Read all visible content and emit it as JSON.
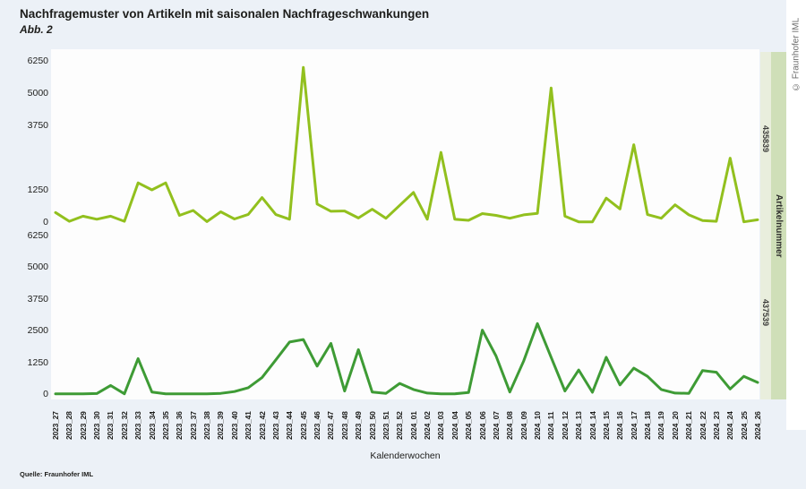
{
  "header": {
    "title": "Nachfragemuster von Artikeln mit saisonalen Nachfrageschwankungen",
    "subtitle": "Abb. 2"
  },
  "copyright_vertical": "© Fraunhofer IML",
  "source": "Quelle: Fraunhofer IML",
  "colors": {
    "page_background": "#ecf1f7",
    "plot_background": "#fdfdfd",
    "strip_values_background": "#e9eedd",
    "strip_axis_background": "#cfdfb8",
    "series_top": "#92c01e",
    "series_bottom": "#3e9b35",
    "text": "#1d1d1b"
  },
  "chart_data": {
    "type": "line",
    "layout": "stacked-facets",
    "grid": false,
    "xlabel": "Kalenderwochen",
    "facet_axis_label": "Artikelnummer",
    "ylim": [
      0,
      6250
    ],
    "yticks_top": [
      6250,
      5000,
      3750,
      1250,
      0
    ],
    "yticks_bottom": [
      6250,
      5000,
      3750,
      2500,
      1250,
      0
    ],
    "x": [
      "2023_27",
      "2023_28",
      "2023_29",
      "2023_30",
      "2023_31",
      "2023_32",
      "2023_33",
      "2023_34",
      "2023_35",
      "2023_36",
      "2023_37",
      "2023_38",
      "2023_39",
      "2023_40",
      "2023_41",
      "2023_42",
      "2023_43",
      "2023_44",
      "2023_45",
      "2023_46",
      "2023_47",
      "2023_48",
      "2023_49",
      "2023_50",
      "2023_51",
      "2023_52",
      "2024_01",
      "2024_02",
      "2024_03",
      "2024_04",
      "2024_05",
      "2024_06",
      "2024_07",
      "2024_08",
      "2024_09",
      "2024_10",
      "2024_11",
      "2024_12",
      "2024_13",
      "2024_14",
      "2024_15",
      "2024_16",
      "2024_17",
      "2024_18",
      "2024_19",
      "2024_20",
      "2024_21",
      "2024_22",
      "2024_23",
      "2024_24",
      "2024_25",
      "2024_26"
    ],
    "series": [
      {
        "name": "435839",
        "color": "#92c01e",
        "values": [
          370,
          30,
          230,
          110,
          230,
          30,
          1520,
          1250,
          1520,
          260,
          450,
          20,
          400,
          120,
          300,
          950,
          290,
          110,
          6000,
          700,
          420,
          430,
          160,
          500,
          150,
          650,
          1150,
          110,
          2700,
          110,
          70,
          330,
          260,
          150,
          280,
          340,
          5200,
          230,
          10,
          10,
          930,
          510,
          3000,
          290,
          150,
          670,
          280,
          60,
          30,
          2480,
          10,
          90
        ]
      },
      {
        "name": "437539",
        "color": "#3e9b35",
        "values": [
          10,
          10,
          10,
          20,
          340,
          10,
          1400,
          80,
          10,
          10,
          10,
          10,
          30,
          100,
          250,
          650,
          1350,
          2050,
          2150,
          1100,
          2000,
          120,
          1750,
          80,
          30,
          420,
          180,
          40,
          10,
          10,
          60,
          2520,
          1500,
          80,
          1300,
          2780,
          1450,
          120,
          950,
          70,
          1450,
          360,
          1020,
          700,
          180,
          40,
          30,
          930,
          860,
          200,
          700,
          460
        ]
      }
    ]
  }
}
